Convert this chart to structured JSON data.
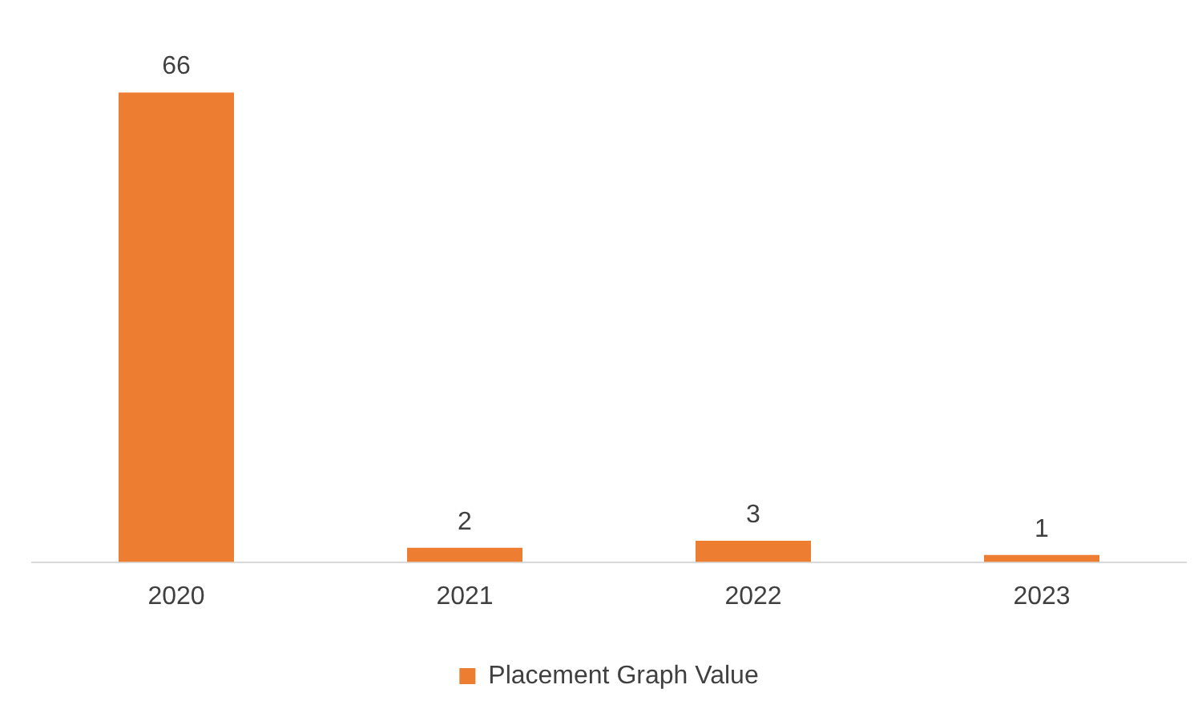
{
  "chart_data": {
    "type": "bar",
    "categories": [
      "2020",
      "2021",
      "2022",
      "2023"
    ],
    "series": [
      {
        "name": "Placement Graph Value",
        "color": "#ed7d31",
        "values": [
          66,
          2,
          3,
          1
        ]
      }
    ],
    "data_labels": true,
    "legend": "bottom",
    "grid": false
  }
}
